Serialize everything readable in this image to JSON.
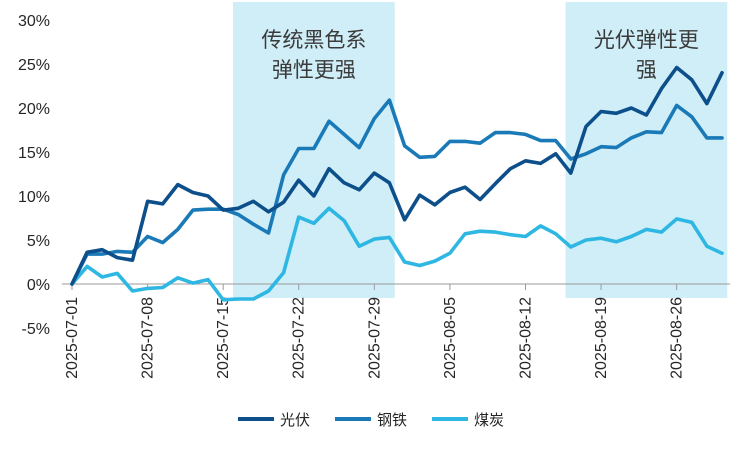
{
  "chart_data": {
    "type": "line",
    "title": "",
    "xlabel": "",
    "ylabel": "",
    "ylim": [
      -0.05,
      0.3
    ],
    "grid": false,
    "legend_position": "bottom",
    "y_ticks": [
      {
        "value": 0.3,
        "label": "30%"
      },
      {
        "value": 0.25,
        "label": "25%"
      },
      {
        "value": 0.2,
        "label": "20%"
      },
      {
        "value": 0.15,
        "label": "15%"
      },
      {
        "value": 0.1,
        "label": "10%"
      },
      {
        "value": 0.05,
        "label": "5%"
      },
      {
        "value": 0.0,
        "label": "0%"
      },
      {
        "value": -0.05,
        "label": "-5%"
      }
    ],
    "x_ticks": [
      "2025-07-01",
      "2025-07-08",
      "2025-07-15",
      "2025-07-22",
      "2025-07-29",
      "2025-08-05",
      "2025-08-12",
      "2025-08-19",
      "2025-08-26"
    ],
    "x": [
      "2025-07-01",
      "2025-07-02",
      "2025-07-03",
      "2025-07-04",
      "2025-07-07",
      "2025-07-08",
      "2025-07-09",
      "2025-07-10",
      "2025-07-11",
      "2025-07-14",
      "2025-07-15",
      "2025-07-16",
      "2025-07-17",
      "2025-07-18",
      "2025-07-21",
      "2025-07-22",
      "2025-07-23",
      "2025-07-24",
      "2025-07-25",
      "2025-07-28",
      "2025-07-29",
      "2025-07-30",
      "2025-07-31",
      "2025-08-01",
      "2025-08-04",
      "2025-08-05",
      "2025-08-06",
      "2025-08-07",
      "2025-08-08",
      "2025-08-11",
      "2025-08-12",
      "2025-08-13",
      "2025-08-14",
      "2025-08-15",
      "2025-08-18",
      "2025-08-19",
      "2025-08-20",
      "2025-08-21",
      "2025-08-22",
      "2025-08-25",
      "2025-08-26",
      "2025-08-27",
      "2025-08-28",
      "2025-08-29"
    ],
    "series": [
      {
        "name": "光伏",
        "color": "#0d4f8b",
        "values": [
          0.0,
          0.036,
          0.039,
          0.03,
          0.027,
          0.094,
          0.091,
          0.113,
          0.104,
          0.1,
          0.084,
          0.086,
          0.094,
          0.082,
          0.093,
          0.118,
          0.1,
          0.131,
          0.115,
          0.107,
          0.126,
          0.115,
          0.073,
          0.101,
          0.09,
          0.104,
          0.11,
          0.096,
          0.114,
          0.131,
          0.14,
          0.137,
          0.148,
          0.126,
          0.179,
          0.196,
          0.194,
          0.2,
          0.192,
          0.222,
          0.246,
          0.232,
          0.205,
          0.24
        ]
      },
      {
        "name": "钢铁",
        "color": "#1a7ab8",
        "values": [
          0.0,
          0.034,
          0.034,
          0.037,
          0.036,
          0.054,
          0.047,
          0.062,
          0.084,
          0.085,
          0.085,
          0.079,
          0.068,
          0.058,
          0.124,
          0.154,
          0.154,
          0.185,
          0.17,
          0.155,
          0.188,
          0.209,
          0.157,
          0.144,
          0.145,
          0.162,
          0.162,
          0.16,
          0.172,
          0.172,
          0.17,
          0.163,
          0.163,
          0.142,
          0.148,
          0.156,
          0.155,
          0.166,
          0.173,
          0.172,
          0.203,
          0.19,
          0.166,
          0.166
        ]
      },
      {
        "name": "煤炭",
        "color": "#2eb7e2",
        "values": [
          0.0,
          0.02,
          0.008,
          0.012,
          -0.008,
          -0.005,
          -0.004,
          0.007,
          0.001,
          0.005,
          -0.018,
          -0.017,
          -0.017,
          -0.008,
          0.013,
          0.076,
          0.069,
          0.086,
          0.072,
          0.043,
          0.051,
          0.053,
          0.025,
          0.021,
          0.026,
          0.035,
          0.057,
          0.06,
          0.059,
          0.056,
          0.054,
          0.066,
          0.057,
          0.042,
          0.05,
          0.052,
          0.048,
          0.054,
          0.062,
          0.059,
          0.074,
          0.07,
          0.043,
          0.035
        ]
      }
    ],
    "annotations": [
      {
        "lines": [
          "传统黑色系",
          "弹性更强"
        ],
        "from": "2025-07-16",
        "to": "2025-07-30",
        "fill": "#d0eef7"
      },
      {
        "lines": [
          "光伏弹性更",
          "强"
        ],
        "from": "2025-08-15",
        "to": "2025-08-29",
        "fill": "#d0eef7"
      }
    ]
  }
}
